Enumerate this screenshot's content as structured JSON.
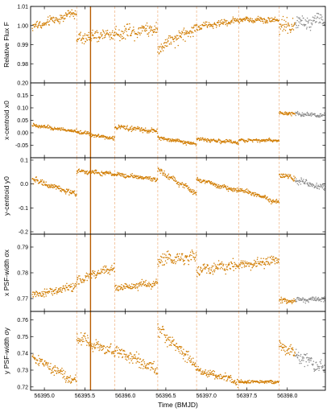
{
  "chart_data": {
    "type": "scatter",
    "xlabel": "Time (BMJD)",
    "xlim": [
      56394.83,
      56398.47
    ],
    "x_ticks": [
      56395.0,
      56395.5,
      56396.0,
      56396.5,
      56397.0,
      56397.5,
      56398.0
    ],
    "x_tick_labels": [
      "56395.0",
      "56395.5",
      "56396.0",
      "56396.5",
      "56397.0",
      "56397.5",
      "56398.0"
    ],
    "segment_boundaries": [
      56395.4,
      56395.87,
      56396.4,
      56396.88,
      56397.4,
      56397.9
    ],
    "highlight_time": 56395.57,
    "colors": {
      "points": "#d17c00",
      "excluded_points": "#8c8c8c",
      "boundary_lines": "#f2c29a",
      "highlight_line": "#b85c00",
      "frame": "#000000"
    },
    "excluded_after": 56398.1,
    "panels": [
      {
        "ylabel": "Relative Flux F",
        "ylim": [
          0.97,
          1.01
        ],
        "y_ticks": [
          0.98,
          0.99,
          1.0,
          1.01
        ],
        "y_tick_labels": [
          "0.98",
          "0.99",
          "1.00",
          "1.01"
        ],
        "segments": [
          {
            "x": [
              56394.85,
              56395.4
            ],
            "y": [
              0.999,
              1.007
            ],
            "scatter": 0.002
          },
          {
            "x": [
              56395.4,
              56395.87
            ],
            "y": [
              0.993,
              0.996
            ],
            "scatter": 0.0025
          },
          {
            "x": [
              56395.87,
              56396.4
            ],
            "y": [
              0.996,
              0.999
            ],
            "scatter": 0.003
          },
          {
            "x": [
              56396.4,
              56396.88
            ],
            "y": [
              0.988,
              0.999
            ],
            "scatter": 0.003
          },
          {
            "x": [
              56396.88,
              56397.4
            ],
            "y": [
              0.999,
              1.003
            ],
            "scatter": 0.0015
          },
          {
            "x": [
              56397.4,
              56397.9
            ],
            "y": [
              1.003,
              1.003
            ],
            "scatter": 0.0012
          },
          {
            "x": [
              56397.9,
              56398.47
            ],
            "y": [
              0.999,
              1.004
            ],
            "scatter": 0.003
          }
        ]
      },
      {
        "ylabel": "x-centroid x0",
        "ylim": [
          -0.1,
          0.2
        ],
        "y_ticks": [
          -0.05,
          0.0,
          0.05,
          0.1,
          0.15,
          0.2
        ],
        "y_tick_labels": [
          "-0.05",
          "0.00",
          "0.05",
          "0.10",
          "0.15",
          "0.20"
        ],
        "segments": [
          {
            "x": [
              56394.85,
              56395.4
            ],
            "y": [
              0.03,
              0.005
            ],
            "scatter": 0.006
          },
          {
            "x": [
              56395.4,
              56395.87
            ],
            "y": [
              0.005,
              -0.025
            ],
            "scatter": 0.006
          },
          {
            "x": [
              56395.87,
              56396.4
            ],
            "y": [
              0.025,
              0.005
            ],
            "scatter": 0.007
          },
          {
            "x": [
              56396.4,
              56396.88
            ],
            "y": [
              -0.02,
              -0.045
            ],
            "scatter": 0.006
          },
          {
            "x": [
              56396.88,
              56397.4
            ],
            "y": [
              -0.025,
              -0.04
            ],
            "scatter": 0.006
          },
          {
            "x": [
              56397.4,
              56397.9
            ],
            "y": [
              -0.03,
              -0.03
            ],
            "scatter": 0.005
          },
          {
            "x": [
              56397.9,
              56398.47
            ],
            "y": [
              0.08,
              0.07
            ],
            "scatter": 0.007
          }
        ]
      },
      {
        "ylabel": "y-centroid y0",
        "ylim": [
          -0.21,
          0.11
        ],
        "y_ticks": [
          -0.2,
          -0.1,
          0.0,
          0.1
        ],
        "y_tick_labels": [
          "-0.2",
          "-0.1",
          "0.0",
          "0.1"
        ],
        "segments": [
          {
            "x": [
              56394.85,
              56395.4
            ],
            "y": [
              0.02,
              -0.045
            ],
            "scatter": 0.01
          },
          {
            "x": [
              56395.4,
              56395.87
            ],
            "y": [
              0.055,
              0.04
            ],
            "scatter": 0.008
          },
          {
            "x": [
              56395.87,
              56396.4
            ],
            "y": [
              0.04,
              0.02
            ],
            "scatter": 0.008
          },
          {
            "x": [
              56396.4,
              56396.88
            ],
            "y": [
              0.06,
              -0.04
            ],
            "scatter": 0.01
          },
          {
            "x": [
              56396.88,
              56397.4
            ],
            "y": [
              0.02,
              -0.03
            ],
            "scatter": 0.008
          },
          {
            "x": [
              56397.4,
              56397.9
            ],
            "y": [
              -0.02,
              -0.08
            ],
            "scatter": 0.008
          },
          {
            "x": [
              56397.9,
              56398.47
            ],
            "y": [
              0.04,
              -0.02
            ],
            "scatter": 0.01
          }
        ]
      },
      {
        "ylabel": "x PSF-width σx",
        "ylim": [
          0.765,
          0.795
        ],
        "y_ticks": [
          0.77,
          0.78,
          0.79
        ],
        "y_tick_labels": [
          "0.77",
          "0.78",
          "0.79"
        ],
        "segments": [
          {
            "x": [
              56394.85,
              56395.4
            ],
            "y": [
              0.771,
              0.775
            ],
            "scatter": 0.0012
          },
          {
            "x": [
              56395.4,
              56395.87
            ],
            "y": [
              0.777,
              0.782
            ],
            "scatter": 0.0015
          },
          {
            "x": [
              56395.87,
              56396.4
            ],
            "y": [
              0.774,
              0.776
            ],
            "scatter": 0.0012
          },
          {
            "x": [
              56396.4,
              56396.88
            ],
            "y": [
              0.785,
              0.786
            ],
            "scatter": 0.002
          },
          {
            "x": [
              56396.88,
              56397.4
            ],
            "y": [
              0.781,
              0.783
            ],
            "scatter": 0.0018
          },
          {
            "x": [
              56397.4,
              56397.9
            ],
            "y": [
              0.783,
              0.785
            ],
            "scatter": 0.0015
          },
          {
            "x": [
              56397.9,
              56398.47
            ],
            "y": [
              0.769,
              0.77
            ],
            "scatter": 0.0008
          }
        ]
      },
      {
        "ylabel": "y PSF-width σy",
        "ylim": [
          0.718,
          0.765
        ],
        "y_ticks": [
          0.72,
          0.73,
          0.74,
          0.75,
          0.76
        ],
        "y_tick_labels": [
          "0.72",
          "0.73",
          "0.74",
          "0.75",
          "0.76"
        ],
        "segments": [
          {
            "x": [
              56394.85,
              56395.4
            ],
            "y": [
              0.738,
              0.723
            ],
            "scatter": 0.0025
          },
          {
            "x": [
              56395.4,
              56395.87
            ],
            "y": [
              0.75,
              0.74
            ],
            "scatter": 0.003
          },
          {
            "x": [
              56395.87,
              56396.4
            ],
            "y": [
              0.742,
              0.73
            ],
            "scatter": 0.003
          },
          {
            "x": [
              56396.4,
              56396.88
            ],
            "y": [
              0.755,
              0.732
            ],
            "scatter": 0.0035
          },
          {
            "x": [
              56396.88,
              56397.4
            ],
            "y": [
              0.73,
              0.723
            ],
            "scatter": 0.002
          },
          {
            "x": [
              56397.4,
              56397.9
            ],
            "y": [
              0.723,
              0.723
            ],
            "scatter": 0.0008
          },
          {
            "x": [
              56397.9,
              56398.47
            ],
            "y": [
              0.745,
              0.73
            ],
            "scatter": 0.003
          }
        ]
      }
    ]
  }
}
